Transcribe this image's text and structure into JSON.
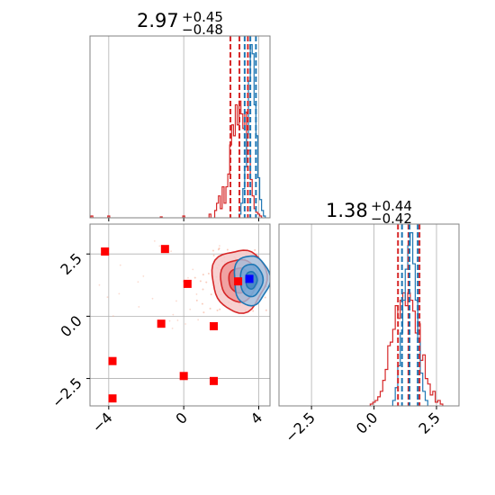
{
  "chart_data": {
    "type": "corner",
    "panels": [
      {
        "id": "hist_x",
        "type": "histogram",
        "title": {
          "value": "2.97",
          "upper": "+0.45",
          "lower": "−0.48"
        },
        "xlim": [
          -5,
          4.6
        ],
        "grid": true,
        "series": [
          {
            "name": "",
            "color": "#d62728",
            "bins": [
              {
                "x": -4.9,
                "y": 0.01
              },
              {
                "x": -4.0,
                "y": 0.01
              },
              {
                "x": -1.2,
                "y": 0.005
              },
              {
                "x": 0.0,
                "y": 0.01
              },
              {
                "x": 1.4,
                "y": 0.02
              },
              {
                "x": 1.7,
                "y": 0.04
              },
              {
                "x": 1.8,
                "y": 0.08
              },
              {
                "x": 1.9,
                "y": 0.12
              },
              {
                "x": 2.0,
                "y": 0.05
              },
              {
                "x": 2.1,
                "y": 0.17
              },
              {
                "x": 2.2,
                "y": 0.08
              },
              {
                "x": 2.3,
                "y": 0.17
              },
              {
                "x": 2.4,
                "y": 0.24
              },
              {
                "x": 2.5,
                "y": 0.4
              },
              {
                "x": 2.6,
                "y": 0.51
              },
              {
                "x": 2.7,
                "y": 0.45
              },
              {
                "x": 2.8,
                "y": 0.62
              },
              {
                "x": 2.9,
                "y": 0.51
              },
              {
                "x": 3.0,
                "y": 0.64
              },
              {
                "x": 3.1,
                "y": 0.57
              },
              {
                "x": 3.2,
                "y": 0.49
              },
              {
                "x": 3.3,
                "y": 0.58
              },
              {
                "x": 3.4,
                "y": 0.35
              },
              {
                "x": 3.5,
                "y": 0.37
              },
              {
                "x": 3.6,
                "y": 0.21
              },
              {
                "x": 3.7,
                "y": 0.12
              },
              {
                "x": 3.8,
                "y": 0.05
              },
              {
                "x": 3.9,
                "y": 0.03
              },
              {
                "x": 4.0,
                "y": 0.02
              },
              {
                "x": 4.1,
                "y": 0.01
              }
            ],
            "quantiles": [
              2.49,
              2.97,
              3.42
            ]
          },
          {
            "name": "",
            "color": "#1f77b4",
            "bins": [
              {
                "x": 3.0,
                "y": 0.02
              },
              {
                "x": 3.1,
                "y": 0.08
              },
              {
                "x": 3.2,
                "y": 0.16
              },
              {
                "x": 3.3,
                "y": 0.28
              },
              {
                "x": 3.4,
                "y": 0.46
              },
              {
                "x": 3.5,
                "y": 0.75
              },
              {
                "x": 3.6,
                "y": 0.95
              },
              {
                "x": 3.7,
                "y": 0.9
              },
              {
                "x": 3.8,
                "y": 0.62
              },
              {
                "x": 3.9,
                "y": 0.45
              },
              {
                "x": 4.0,
                "y": 0.22
              },
              {
                "x": 4.1,
                "y": 0.1
              },
              {
                "x": 4.2,
                "y": 0.04
              },
              {
                "x": 4.3,
                "y": 0.01
              }
            ],
            "quantiles": [
              3.25,
              3.55,
              3.85
            ]
          }
        ]
      },
      {
        "id": "joint",
        "type": "scatter_contour",
        "xlim": [
          -5,
          4.6
        ],
        "ylim": [
          -3.6,
          3.7
        ],
        "xticks": [
          -4,
          0,
          4
        ],
        "yticks": [
          -2.5,
          0.0,
          2.5
        ],
        "xtick_labels": [
          "−4",
          "0",
          "4"
        ],
        "ytick_labels": [
          "−2.5",
          "0.0",
          "2.5"
        ],
        "grid": true,
        "markers": [
          {
            "x": -4.2,
            "y": 2.6,
            "color": "#ff0000"
          },
          {
            "x": -1.0,
            "y": 2.7,
            "color": "#ff0000"
          },
          {
            "x": 0.2,
            "y": 1.3,
            "color": "#ff0000"
          },
          {
            "x": -1.2,
            "y": -0.3,
            "color": "#ff0000"
          },
          {
            "x": 1.6,
            "y": -0.4,
            "color": "#ff0000"
          },
          {
            "x": -3.8,
            "y": -1.8,
            "color": "#ff0000"
          },
          {
            "x": 0.0,
            "y": -2.4,
            "color": "#ff0000"
          },
          {
            "x": 1.6,
            "y": -2.6,
            "color": "#ff0000"
          },
          {
            "x": -3.8,
            "y": -3.3,
            "color": "#ff0000"
          },
          {
            "x": 2.9,
            "y": 1.4,
            "color": "#ff0000"
          },
          {
            "x": 3.5,
            "y": 1.5,
            "color": "#0000ff"
          }
        ],
        "contours": [
          {
            "color": "#d62728",
            "cx": 2.95,
            "cy": 1.45,
            "levels": [
              {
                "rx": 1.45,
                "ry": 1.25
              },
              {
                "rx": 1.0,
                "ry": 0.85
              },
              {
                "rx": 0.55,
                "ry": 0.5
              }
            ]
          },
          {
            "color": "#1f77b4",
            "cx": 3.6,
            "cy": 1.45,
            "levels": [
              {
                "rx": 0.95,
                "ry": 1.0
              },
              {
                "rx": 0.6,
                "ry": 0.65
              },
              {
                "rx": 0.3,
                "ry": 0.35
              }
            ]
          }
        ]
      },
      {
        "id": "hist_y",
        "type": "histogram",
        "title": {
          "value": "1.38",
          "upper": "+0.44",
          "lower": "−0.42"
        },
        "xlim": [
          -3.8,
          3.4
        ],
        "xticks": [
          -2.5,
          0.0,
          2.5
        ],
        "xtick_labels": [
          "−2.5",
          "0.0",
          "2.5"
        ],
        "grid": true,
        "series": [
          {
            "name": "",
            "color": "#d62728",
            "bins": [
              {
                "x": -0.1,
                "y": 0.01
              },
              {
                "x": 0.0,
                "y": 0.02
              },
              {
                "x": 0.1,
                "y": 0.03
              },
              {
                "x": 0.2,
                "y": 0.05
              },
              {
                "x": 0.3,
                "y": 0.08
              },
              {
                "x": 0.4,
                "y": 0.14
              },
              {
                "x": 0.5,
                "y": 0.2
              },
              {
                "x": 0.6,
                "y": 0.33
              },
              {
                "x": 0.7,
                "y": 0.35
              },
              {
                "x": 0.8,
                "y": 0.42
              },
              {
                "x": 0.9,
                "y": 0.55
              },
              {
                "x": 1.0,
                "y": 0.48
              },
              {
                "x": 1.1,
                "y": 0.58
              },
              {
                "x": 1.2,
                "y": 0.62
              },
              {
                "x": 1.3,
                "y": 0.55
              },
              {
                "x": 1.4,
                "y": 0.62
              },
              {
                "x": 1.5,
                "y": 0.58
              },
              {
                "x": 1.6,
                "y": 0.52
              },
              {
                "x": 1.7,
                "y": 0.4
              },
              {
                "x": 1.8,
                "y": 0.45
              },
              {
                "x": 1.9,
                "y": 0.25
              },
              {
                "x": 2.0,
                "y": 0.28
              },
              {
                "x": 2.1,
                "y": 0.15
              },
              {
                "x": 2.2,
                "y": 0.12
              },
              {
                "x": 2.3,
                "y": 0.06
              },
              {
                "x": 2.4,
                "y": 0.08
              },
              {
                "x": 2.5,
                "y": 0.02
              },
              {
                "x": 2.6,
                "y": 0.03
              },
              {
                "x": 2.7,
                "y": 0.01
              }
            ],
            "quantiles": [
              0.96,
              1.38,
              1.82
            ]
          },
          {
            "name": "",
            "color": "#1f77b4",
            "bins": [
              {
                "x": 0.8,
                "y": 0.03
              },
              {
                "x": 0.9,
                "y": 0.1
              },
              {
                "x": 1.0,
                "y": 0.22
              },
              {
                "x": 1.1,
                "y": 0.4
              },
              {
                "x": 1.2,
                "y": 0.58
              },
              {
                "x": 1.3,
                "y": 0.75
              },
              {
                "x": 1.4,
                "y": 0.88
              },
              {
                "x": 1.5,
                "y": 0.95
              },
              {
                "x": 1.6,
                "y": 0.78
              },
              {
                "x": 1.7,
                "y": 0.58
              },
              {
                "x": 1.8,
                "y": 0.35
              },
              {
                "x": 1.9,
                "y": 0.18
              },
              {
                "x": 2.0,
                "y": 0.08
              },
              {
                "x": 2.1,
                "y": 0.03
              }
            ],
            "quantiles": [
              1.12,
              1.42,
              1.75
            ]
          }
        ]
      }
    ]
  }
}
